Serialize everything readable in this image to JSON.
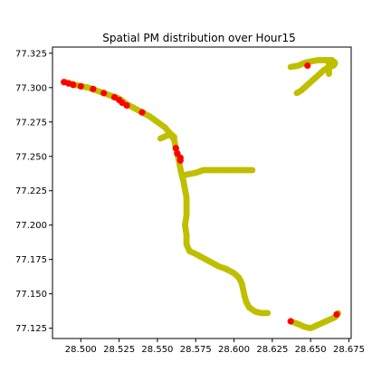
{
  "chart_data": {
    "type": "scatter",
    "title": "Spatial PM distribution over Hour15",
    "xlabel": "",
    "ylabel": "",
    "xlim": [
      28.4815,
      28.6765
    ],
    "ylim": [
      77.1175,
      77.3295
    ],
    "xticks": [
      "28.500",
      "28.525",
      "28.550",
      "28.575",
      "28.600",
      "28.625",
      "28.650",
      "28.675"
    ],
    "yticks": [
      "77.125",
      "77.150",
      "77.175",
      "77.200",
      "77.225",
      "77.250",
      "77.275",
      "77.300",
      "77.325"
    ],
    "grid": false,
    "colors": {
      "low": "#bfbf00",
      "high": "#ff0000"
    },
    "series": [
      {
        "color": "yellow",
        "paths": [
          [
            [
              28.49,
              77.304
            ],
            [
              28.5,
              77.301
            ],
            [
              28.505,
              77.3
            ],
            [
              28.51,
              77.298
            ],
            [
              28.515,
              77.296
            ],
            [
              28.52,
              77.294
            ],
            [
              28.525,
              77.292
            ],
            [
              28.53,
              77.288
            ],
            [
              28.535,
              77.285
            ],
            [
              28.54,
              77.282
            ],
            [
              28.545,
              77.279
            ],
            [
              28.55,
              77.275
            ],
            [
              28.555,
              77.271
            ],
            [
              28.558,
              77.267
            ],
            [
              28.561,
              77.262
            ],
            [
              28.562,
              77.256
            ],
            [
              28.563,
              77.252
            ],
            [
              28.564,
              77.247
            ],
            [
              28.565,
              77.241
            ],
            [
              28.566,
              77.236
            ],
            [
              28.567,
              77.232
            ],
            [
              28.568,
              77.226
            ],
            [
              28.569,
              77.22
            ],
            [
              28.569,
              77.213
            ],
            [
              28.569,
              77.207
            ],
            [
              28.568,
              77.2
            ],
            [
              28.569,
              77.193
            ],
            [
              28.569,
              77.186
            ],
            [
              28.571,
              77.181
            ],
            [
              28.575,
              77.179
            ],
            [
              28.58,
              77.176
            ],
            [
              28.585,
              77.173
            ],
            [
              28.59,
              77.17
            ],
            [
              28.595,
              77.168
            ],
            [
              28.6,
              77.165
            ],
            [
              28.603,
              77.162
            ],
            [
              28.605,
              77.158
            ],
            [
              28.606,
              77.153
            ],
            [
              28.607,
              77.148
            ],
            [
              28.608,
              77.144
            ],
            [
              28.61,
              77.14
            ],
            [
              28.614,
              77.137
            ],
            [
              28.618,
              77.136
            ],
            [
              28.622,
              77.136
            ]
          ],
          [
            [
              28.567,
              77.236
            ],
            [
              28.57,
              77.237
            ],
            [
              28.575,
              77.238
            ],
            [
              28.58,
              77.24
            ],
            [
              28.585,
              77.24
            ],
            [
              28.59,
              77.24
            ],
            [
              28.595,
              77.24
            ],
            [
              28.6,
              77.24
            ],
            [
              28.605,
              77.24
            ],
            [
              28.612,
              77.24
            ]
          ],
          [
            [
              28.552,
              77.263
            ],
            [
              28.556,
              77.265
            ],
            [
              28.559,
              77.266
            ],
            [
              28.561,
              77.264
            ]
          ],
          [
            [
              28.637,
              77.13
            ],
            [
              28.642,
              77.128
            ],
            [
              28.646,
              77.126
            ],
            [
              28.65,
              77.125
            ],
            [
              28.654,
              77.127
            ],
            [
              28.658,
              77.129
            ],
            [
              28.662,
              77.131
            ],
            [
              28.666,
              77.133
            ],
            [
              28.668,
              77.136
            ]
          ],
          [
            [
              28.637,
              77.315
            ],
            [
              28.642,
              77.316
            ],
            [
              28.646,
              77.318
            ],
            [
              28.65,
              77.319
            ],
            [
              28.655,
              77.32
            ],
            [
              28.66,
              77.32
            ],
            [
              28.664,
              77.32
            ],
            [
              28.666,
              77.318
            ],
            [
              28.665,
              77.316
            ],
            [
              28.662,
              77.315
            ],
            [
              28.659,
              77.313
            ],
            [
              28.656,
              77.31
            ],
            [
              28.653,
              77.307
            ],
            [
              28.65,
              77.304
            ],
            [
              28.647,
              77.301
            ],
            [
              28.644,
              77.298
            ],
            [
              28.641,
              77.296
            ]
          ],
          [
            [
              28.662,
              77.32
            ],
            [
              28.662,
              77.317
            ],
            [
              28.662,
              77.313
            ],
            [
              28.662,
              77.31
            ]
          ]
        ]
      },
      {
        "color": "red",
        "points": [
          [
            28.489,
            77.304
          ],
          [
            28.492,
            77.303
          ],
          [
            28.495,
            77.302
          ],
          [
            28.5,
            77.301
          ],
          [
            28.508,
            77.299
          ],
          [
            28.515,
            77.296
          ],
          [
            28.522,
            77.293
          ],
          [
            28.525,
            77.291
          ],
          [
            28.527,
            77.289
          ],
          [
            28.53,
            77.287
          ],
          [
            28.54,
            77.282
          ],
          [
            28.562,
            77.256
          ],
          [
            28.563,
            77.252
          ],
          [
            28.565,
            77.249
          ],
          [
            28.565,
            77.247
          ],
          [
            28.648,
            77.316
          ],
          [
            28.637,
            77.13
          ],
          [
            28.667,
            77.135
          ]
        ]
      }
    ]
  }
}
